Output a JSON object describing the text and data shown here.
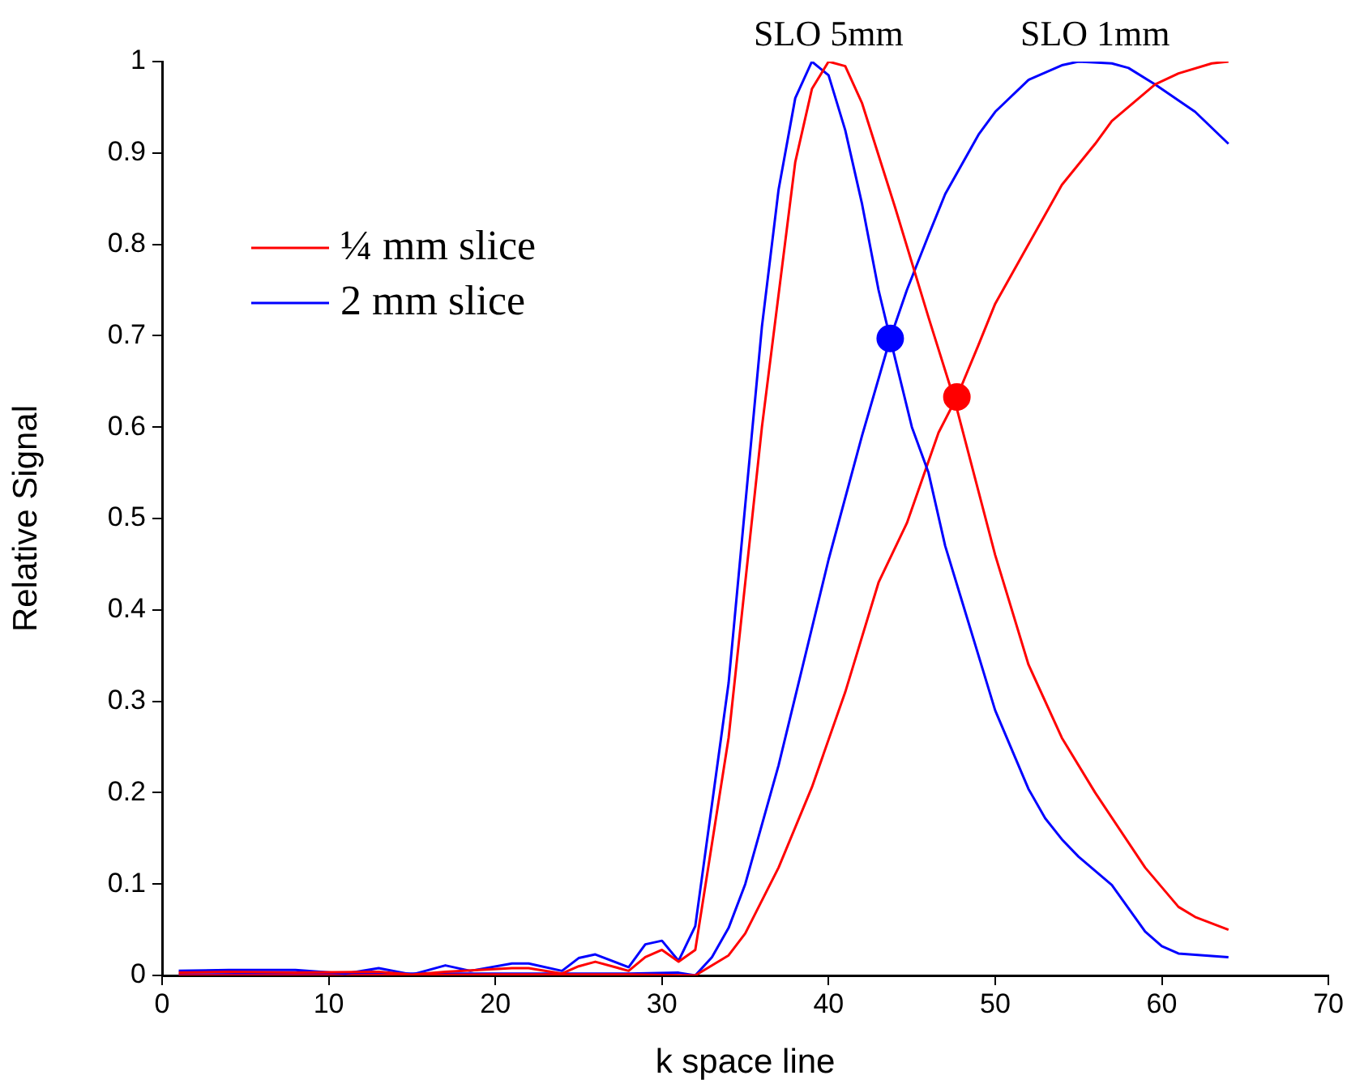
{
  "chart_data": {
    "type": "line",
    "xlabel": "k space line",
    "ylabel": "Relative Signal",
    "xlim": [
      0,
      70
    ],
    "xticks": [
      0,
      10,
      20,
      30,
      40,
      50,
      60,
      70
    ],
    "ylim": [
      0,
      1
    ],
    "yticks": [
      0,
      0.1,
      0.2,
      0.3,
      0.4,
      0.5,
      0.6,
      0.7,
      0.8,
      0.9,
      1
    ],
    "grid": false,
    "legend": "top left",
    "marker": "none",
    "line_style": "solid",
    "annotations": [
      {
        "text": "SLO 5mm",
        "x": 40,
        "y": 1
      },
      {
        "text": "SLO 1mm",
        "x": 56,
        "y": 1
      }
    ],
    "series": [
      {
        "name": "¼ mm slice",
        "color": "#ff0000",
        "x": [
          1,
          4,
          8,
          13,
          15,
          17,
          21,
          22,
          24,
          25,
          26,
          28,
          29,
          30,
          31,
          32,
          34,
          36,
          38,
          39,
          40,
          41,
          42,
          44,
          46,
          47.6,
          50,
          52,
          54,
          56,
          59,
          61,
          62,
          64
        ],
        "values": [
          0.003,
          0.004,
          0.003,
          0.004,
          0.001,
          0.004,
          0.008,
          0.008,
          0.002,
          0.01,
          0.015,
          0.005,
          0.02,
          0.028,
          0.015,
          0.028,
          0.26,
          0.6,
          0.89,
          0.97,
          1,
          0.995,
          0.955,
          0.84,
          0.72,
          0.627,
          0.46,
          0.34,
          0.26,
          0.2,
          0.118,
          0.075,
          0.064,
          0.05
        ]
      },
      {
        "name": "2 mm slice",
        "color": "#0000ff",
        "x": [
          1,
          4,
          8,
          11,
          13,
          15,
          17,
          18.5,
          21,
          22,
          24,
          25,
          26,
          28,
          29,
          30,
          31,
          32,
          34,
          36,
          37,
          38,
          39,
          40,
          41,
          42,
          43,
          43.7,
          45,
          46,
          47,
          48,
          50,
          52,
          53,
          54,
          55,
          57,
          59,
          60,
          61,
          64
        ],
        "values": [
          0.005,
          0.006,
          0.006,
          0.002,
          0.008,
          0.001,
          0.011,
          0.005,
          0.013,
          0.013,
          0.005,
          0.019,
          0.023,
          0.009,
          0.034,
          0.038,
          0.016,
          0.054,
          0.32,
          0.71,
          0.86,
          0.96,
          1,
          0.985,
          0.925,
          0.845,
          0.75,
          0.697,
          0.6,
          0.55,
          0.47,
          0.41,
          0.29,
          0.204,
          0.172,
          0.149,
          0.13,
          0.099,
          0.048,
          0.032,
          0.024,
          0.02
        ]
      },
      {
        "color": "#ff0000",
        "x": [
          1,
          10,
          20,
          28,
          32,
          34,
          35,
          37,
          39,
          41,
          43,
          44.7,
          46.6,
          47.7,
          49,
          50,
          52,
          54,
          56,
          57,
          59.6,
          61,
          63,
          64
        ],
        "values": [
          0,
          0,
          0.001,
          0.001,
          0,
          0.022,
          0.046,
          0.118,
          0.206,
          0.31,
          0.43,
          0.495,
          0.594,
          0.633,
          0.69,
          0.735,
          0.8,
          0.865,
          0.91,
          0.935,
          0.975,
          0.987,
          0.998,
          1
        ]
      },
      {
        "color": "#0000ff",
        "x": [
          1,
          10,
          20,
          28,
          31,
          32,
          33,
          34,
          35,
          37,
          40,
          42,
          43.7,
          44.7,
          46,
          47,
          49,
          50,
          52,
          54,
          55,
          57,
          58,
          59.6,
          62,
          64
        ],
        "values": [
          0.001,
          0.002,
          0.002,
          0.002,
          0.003,
          0,
          0.02,
          0.052,
          0.1,
          0.23,
          0.455,
          0.59,
          0.697,
          0.75,
          0.81,
          0.855,
          0.92,
          0.945,
          0.98,
          0.996,
          1,
          0.998,
          0.993,
          0.975,
          0.945,
          0.91
        ]
      },
      {
        "type": "scatter",
        "marker": "circle",
        "color": "#0000ff",
        "x": [
          43.7
        ],
        "values": [
          0.697
        ]
      },
      {
        "type": "scatter",
        "marker": "circle",
        "color": "#ff0000",
        "x": [
          47.7
        ],
        "values": [
          0.633
        ]
      }
    ]
  }
}
